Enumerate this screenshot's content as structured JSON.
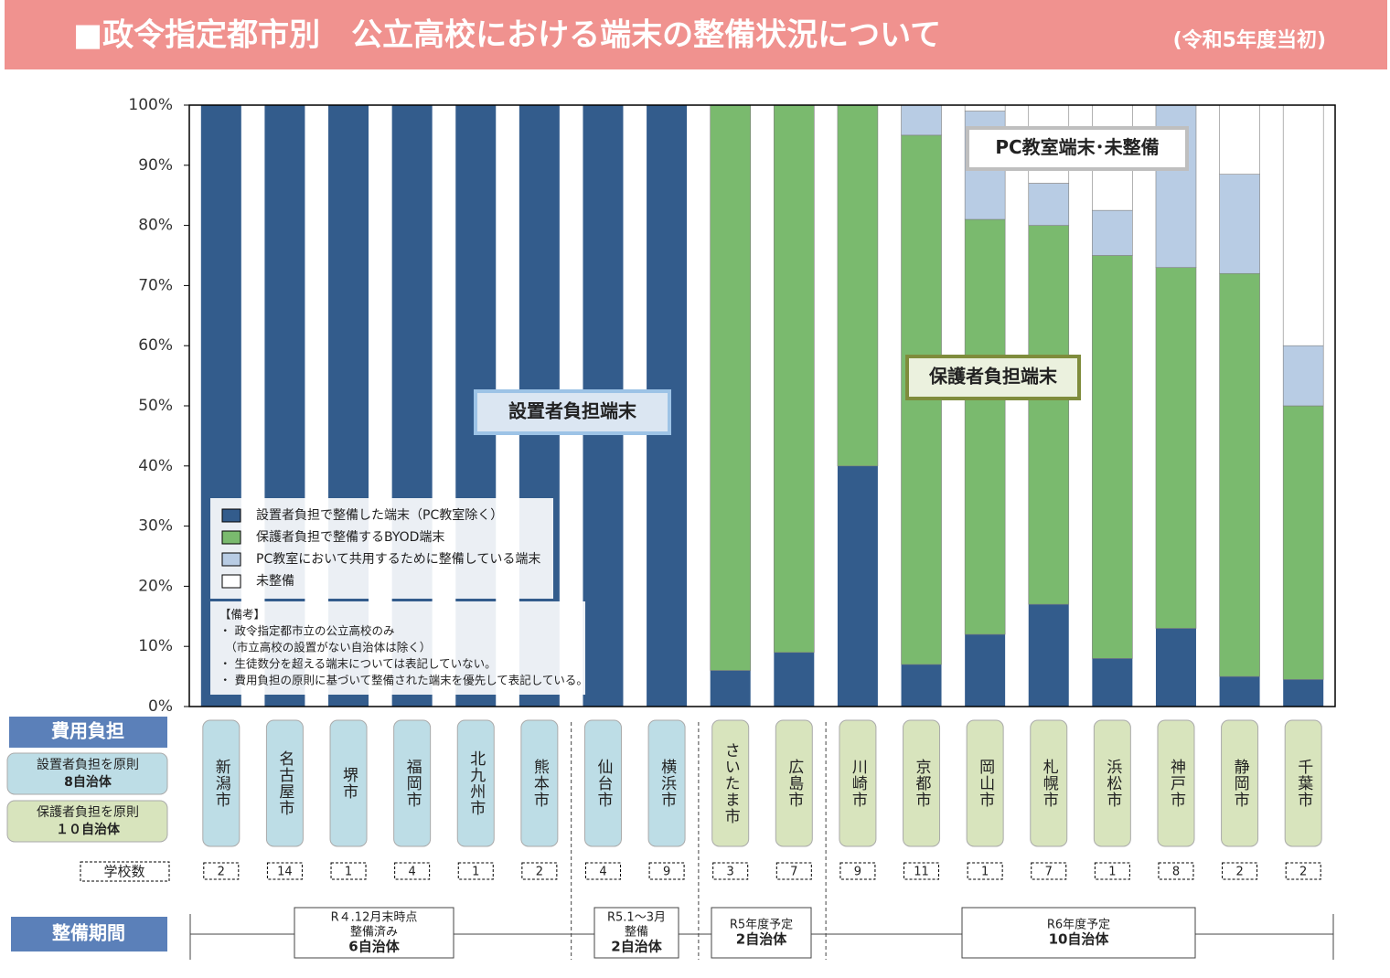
{
  "chart_data": {
    "type": "stacked_bar",
    "title": "■政令指定都市別　公立高校における端末の整備状況について",
    "subtitle": "(令和5年度当初)",
    "categories": [
      "新潟市",
      "名古屋市",
      "堺市",
      "福岡市",
      "北九州市",
      "熊本市",
      "仙台市",
      "横浜市",
      "さいたま市",
      "広島市",
      "川崎市",
      "京都市",
      "岡山市",
      "札幌市",
      "浜松市",
      "神戸市",
      "静岡市",
      "千葉市"
    ],
    "category_colors": [
      "#bddde6",
      "#bddde6",
      "#bddde6",
      "#bddde6",
      "#bddde6",
      "#bddde6",
      "#bddde6",
      "#bddde6",
      "#d8e4bd",
      "#d8e4bd",
      "#d8e4bd",
      "#d8e4bd",
      "#d8e4bd",
      "#d8e4bd",
      "#d8e4bd",
      "#d8e4bd",
      "#d8e4bd",
      "#d8e4bd"
    ],
    "series": [
      {
        "name": "設置者負担で整備した端末（PC教室除く）",
        "color": "#335c8c",
        "values": [
          100,
          100,
          100,
          100,
          100,
          100,
          100,
          100,
          6,
          9,
          40,
          7,
          12,
          17,
          8,
          13,
          5,
          4.5
        ]
      },
      {
        "name": "保護者負担で整備するBYOD端末",
        "color": "#7aba6e",
        "values": [
          0,
          0,
          0,
          0,
          0,
          0,
          0,
          0,
          94,
          91,
          60,
          88,
          69,
          63,
          67,
          60,
          67,
          45.5
        ]
      },
      {
        "name": "PC教室において共用するために整備している端末",
        "color": "#b8cce4",
        "values": [
          0,
          0,
          0,
          0,
          0,
          0,
          0,
          0,
          0,
          0,
          0,
          5,
          18,
          7,
          7.5,
          27,
          16.5,
          10
        ]
      },
      {
        "name": "未整備",
        "color": "#ffffff",
        "values": [
          0,
          0,
          0,
          0,
          0,
          0,
          0,
          0,
          0,
          0,
          0,
          0,
          1,
          13,
          17.5,
          0,
          11.5,
          40
        ]
      }
    ],
    "ylim": [
      0,
      100
    ],
    "yticks": [
      {
        "value": 0,
        "label": "0%"
      },
      {
        "value": 10,
        "label": "10%"
      },
      {
        "value": 20,
        "label": "20%"
      },
      {
        "value": 30,
        "label": "30%"
      },
      {
        "value": 40,
        "label": "40%"
      },
      {
        "value": 50,
        "label": "50%"
      },
      {
        "value": 60,
        "label": "60%"
      },
      {
        "value": 70,
        "label": "70%"
      },
      {
        "value": 80,
        "label": "80%"
      },
      {
        "value": 90,
        "label": "90%"
      },
      {
        "value": 100,
        "label": "100%"
      }
    ],
    "annotations": [
      "設置者負担端末",
      "保護者負担端末",
      "PC教室端末･未整備"
    ],
    "notes": [
      "【備考】",
      "・ 政令指定都市立の公立高校のみ",
      "　（市立高校の設置がない自治体は除く）",
      "・ 生徒数分を超える端末については表記していない。",
      "・ 費用負担の原則に基づいて整備された端末を優先して表記している。"
    ],
    "row_labels": {
      "cost": "費用負担",
      "founder": [
        "設置者負担を原則",
        "8自治体"
      ],
      "guardian": [
        "保護者負担を原則",
        "１０自治体"
      ],
      "schools": "学校数",
      "period": "整備期間"
    },
    "school_counts": [
      2,
      14,
      1,
      4,
      1,
      2,
      4,
      9,
      3,
      7,
      9,
      11,
      1,
      7,
      1,
      8,
      2,
      2
    ],
    "periods": [
      [
        "R４.12月末時点",
        "整備済み",
        "6自治体"
      ],
      [
        "R5.1～3月",
        "整備",
        "2自治体"
      ],
      [
        "R5年度予定",
        "2自治体"
      ],
      [
        "R6年度予定",
        "10自治体"
      ]
    ]
  }
}
